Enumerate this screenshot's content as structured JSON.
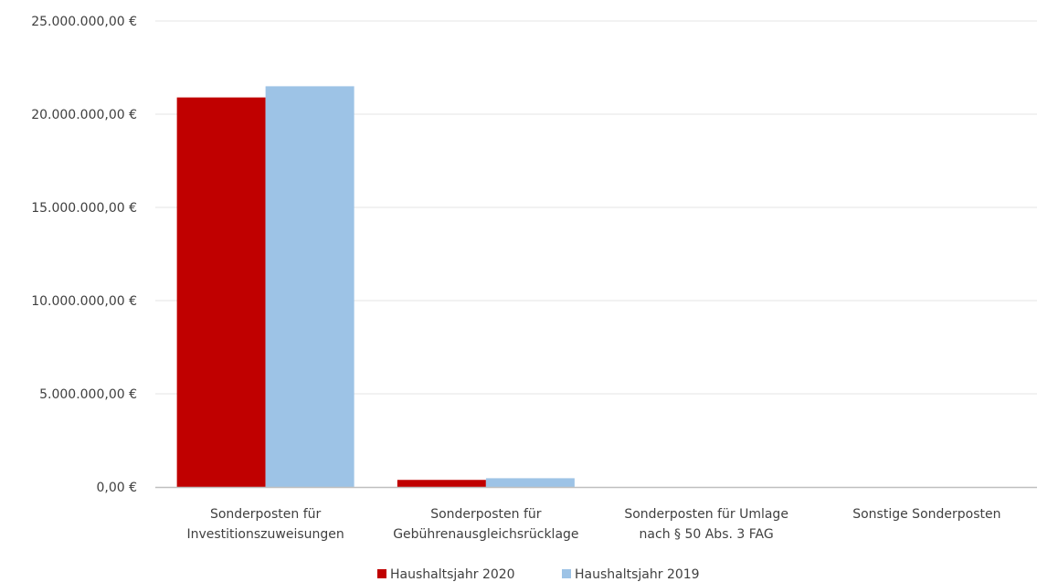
{
  "chart_data": {
    "type": "bar",
    "categories": [
      [
        "Sonderposten für",
        "Investitionszuweisungen"
      ],
      [
        "Sonderposten für",
        "Gebührenausgleichsrücklage"
      ],
      [
        "Sonderposten für Umlage",
        "nach § 50 Abs. 3 FAG"
      ],
      [
        "Sonstige Sonderposten"
      ]
    ],
    "series": [
      {
        "name": "Haushaltsjahr 2020",
        "color": "#c00000",
        "values": [
          20900000,
          380000,
          0,
          0
        ]
      },
      {
        "name": "Haushaltsjahr 2019",
        "color": "#9dc3e6",
        "values": [
          21500000,
          470000,
          0,
          0
        ]
      }
    ],
    "ylim": [
      0,
      25000000
    ],
    "yticks": [
      {
        "value": 0,
        "label": "0,00 €"
      },
      {
        "value": 5000000,
        "label": "5.000.000,00 €"
      },
      {
        "value": 10000000,
        "label": "10.000.000,00 €"
      },
      {
        "value": 15000000,
        "label": "15.000.000,00 €"
      },
      {
        "value": 20000000,
        "label": "20.000.000,00 €"
      },
      {
        "value": 25000000,
        "label": "25.000.000,00 €"
      }
    ],
    "grid": true,
    "legend": "bottom",
    "title": "",
    "xlabel": "",
    "ylabel": ""
  }
}
